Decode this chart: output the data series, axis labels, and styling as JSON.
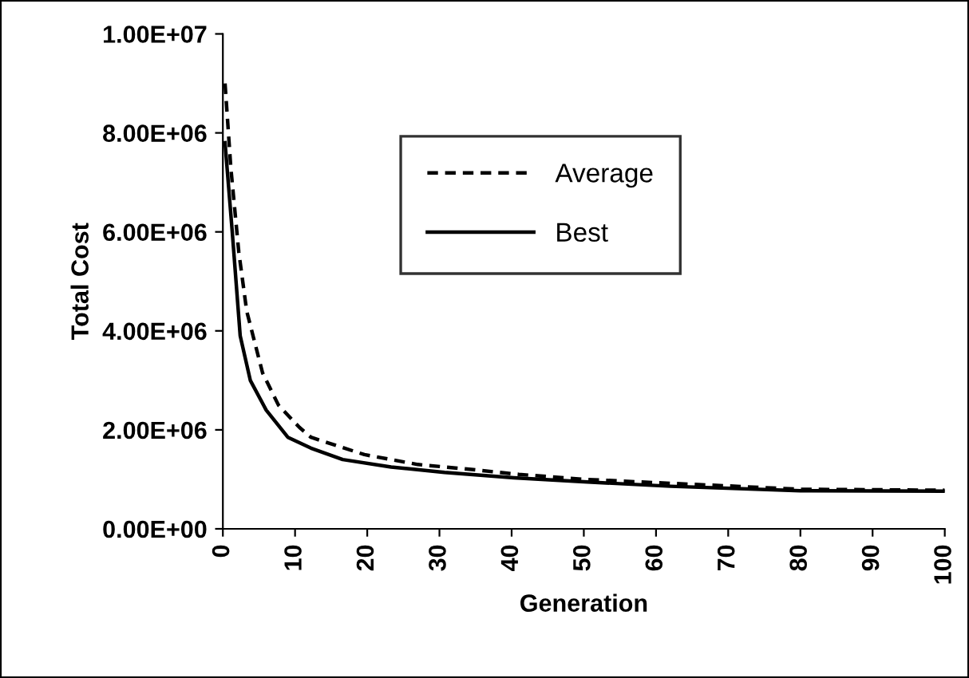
{
  "chart_data": {
    "type": "line",
    "xlabel": "Generation",
    "ylabel": "Total Cost",
    "xlim": [
      0,
      100
    ],
    "xticks": [
      0,
      10,
      20,
      30,
      40,
      50,
      60,
      70,
      80,
      90,
      100
    ],
    "ylim": [
      0,
      10000000
    ],
    "yticks": [
      {
        "value": 0,
        "label": "0.00E+00"
      },
      {
        "value": 2000000,
        "label": "2.00E+06"
      },
      {
        "value": 4000000,
        "label": "4.00E+06"
      },
      {
        "value": 6000000,
        "label": "6.00E+06"
      },
      {
        "value": 8000000,
        "label": "8.00E+06"
      },
      {
        "value": 10000000,
        "label": "1.00E+07"
      }
    ],
    "grid": false,
    "legend": "top",
    "series": [
      {
        "name": "Average",
        "color": "#000000",
        "line_style": "dashed",
        "x": [
          0.3,
          1.1,
          2.2,
          3.3,
          5.5,
          7.7,
          10.6,
          12.2,
          19.6,
          27,
          34.4,
          41,
          50,
          62,
          80,
          100
        ],
        "values": [
          9000000,
          7300000,
          5600000,
          4400000,
          3150000,
          2500000,
          2050000,
          1850000,
          1500000,
          1300000,
          1200000,
          1100000,
          1000000,
          920000,
          800000,
          780000
        ]
      },
      {
        "name": "Best",
        "color": "#000000",
        "line_style": "solid",
        "x": [
          0.3,
          1.3,
          2.4,
          3.8,
          6,
          9,
          12.2,
          16.6,
          23.3,
          30.7,
          40.3,
          50,
          62,
          80,
          100
        ],
        "values": [
          7800000,
          6000000,
          3900000,
          3000000,
          2400000,
          1850000,
          1630000,
          1400000,
          1250000,
          1140000,
          1030000,
          950000,
          860000,
          770000,
          760000
        ]
      }
    ]
  }
}
